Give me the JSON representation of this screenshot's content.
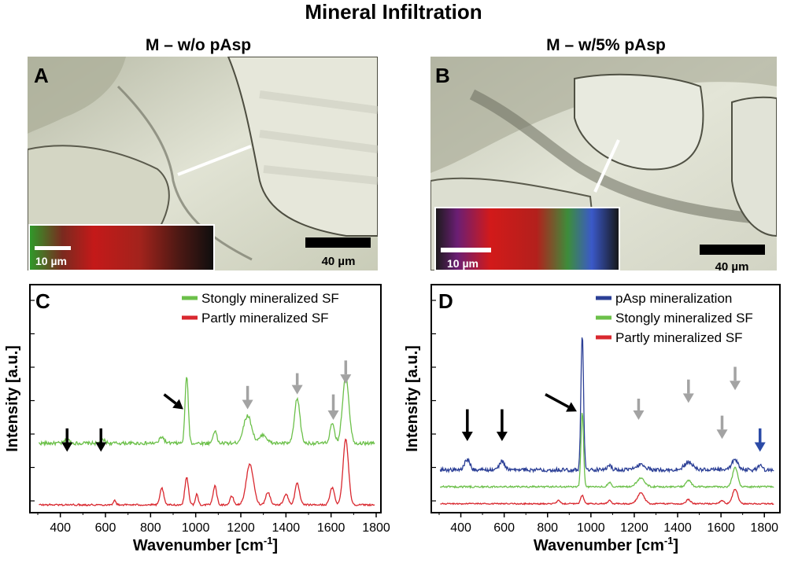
{
  "figure": {
    "title": "Mineral Infiltration",
    "left_condition": "M – w/o pAsp",
    "right_condition": "M – w/5% pAsp"
  },
  "panels": {
    "A": {
      "letter": "A",
      "scale_bar": "40 µm",
      "inset_scale_bar": "10 µm"
    },
    "B": {
      "letter": "B",
      "scale_bar": "40 µm",
      "inset_scale_bar": "10 µm"
    }
  },
  "colors": {
    "green": "#6cc04a",
    "red": "#d9282f",
    "blue": "#2b3f96",
    "arrow_black": "#000000",
    "arrow_gray": "#a3a3a3",
    "arrow_blue": "#2b4aa6"
  },
  "chart_data": [
    {
      "id": "C",
      "panel_letter": "C",
      "type": "line",
      "xlabel": "Wavenumber [cm",
      "xlabel_sup": "-1",
      "xlabel_close": "]",
      "ylabel": "Intensity [a.u.]",
      "xlim": [
        300,
        1800
      ],
      "ylim": [
        0,
        1.0
      ],
      "xticks": [
        400,
        600,
        800,
        1000,
        1200,
        1400,
        1600,
        1800
      ],
      "series": [
        {
          "name": "Stongly mineralized SF",
          "color": "#6cc04a",
          "baseline": 0.29,
          "noise": 0.008,
          "peaks": [
            [
              430,
              0.02,
              10
            ],
            [
              590,
              0.015,
              10
            ],
            [
              850,
              0.03,
              10
            ],
            [
              960,
              0.32,
              7
            ],
            [
              1085,
              0.06,
              8
            ],
            [
              1230,
              0.13,
              18
            ],
            [
              1300,
              0.04,
              15
            ],
            [
              1450,
              0.21,
              12
            ],
            [
              1605,
              0.09,
              10
            ],
            [
              1665,
              0.32,
              14
            ]
          ]
        },
        {
          "name": "Partly mineralized SF",
          "color": "#d9282f",
          "baseline": 0.0,
          "noise": 0.004,
          "peaks": [
            [
              640,
              0.02,
              6
            ],
            [
              850,
              0.08,
              8
            ],
            [
              960,
              0.13,
              8
            ],
            [
              1005,
              0.05,
              6
            ],
            [
              1085,
              0.09,
              8
            ],
            [
              1160,
              0.04,
              8
            ],
            [
              1240,
              0.19,
              16
            ],
            [
              1320,
              0.06,
              10
            ],
            [
              1400,
              0.05,
              10
            ],
            [
              1450,
              0.1,
              10
            ],
            [
              1605,
              0.08,
              10
            ],
            [
              1665,
              0.31,
              12
            ]
          ]
        }
      ],
      "annotations": [
        {
          "kind": "black",
          "x": 430,
          "y_tail": 0.36,
          "y_head": 0.25
        },
        {
          "kind": "black",
          "x": 580,
          "y_tail": 0.36,
          "y_head": 0.25
        },
        {
          "kind": "black-diagonal",
          "x_tail": 860,
          "y_tail": 0.52,
          "x_head": 945,
          "y_head": 0.45
        },
        {
          "kind": "gray",
          "x": 1230,
          "y_tail": 0.56,
          "y_head": 0.45
        },
        {
          "kind": "gray",
          "x": 1450,
          "y_tail": 0.62,
          "y_head": 0.52
        },
        {
          "kind": "gray",
          "x": 1610,
          "y_tail": 0.52,
          "y_head": 0.4
        },
        {
          "kind": "gray",
          "x": 1665,
          "y_tail": 0.68,
          "y_head": 0.57
        }
      ]
    },
    {
      "id": "D",
      "panel_letter": "D",
      "type": "line",
      "xlabel": "Wavenumber [cm",
      "xlabel_sup": "-1",
      "xlabel_close": "]",
      "ylabel": "Intensity [a.u.]",
      "xlim": [
        300,
        1850
      ],
      "ylim": [
        0,
        1.0
      ],
      "xticks": [
        400,
        600,
        800,
        1000,
        1200,
        1400,
        1600,
        1800
      ],
      "series": [
        {
          "name": "pAsp mineralization",
          "color": "#2b3f96",
          "baseline": 0.165,
          "noise": 0.009,
          "peaks": [
            [
              430,
              0.05,
              12
            ],
            [
              590,
              0.04,
              12
            ],
            [
              960,
              0.64,
              6
            ],
            [
              1085,
              0.02,
              10
            ],
            [
              1230,
              0.025,
              20
            ],
            [
              1450,
              0.035,
              20
            ],
            [
              1665,
              0.05,
              14
            ],
            [
              1780,
              0.02,
              10
            ]
          ]
        },
        {
          "name": "Stongly mineralized SF",
          "color": "#6cc04a",
          "baseline": 0.085,
          "noise": 0.004,
          "peaks": [
            [
              960,
              0.35,
              6
            ],
            [
              1085,
              0.02,
              8
            ],
            [
              1230,
              0.04,
              18
            ],
            [
              1450,
              0.03,
              12
            ],
            [
              1665,
              0.09,
              12
            ]
          ]
        },
        {
          "name": "Partly mineralized SF",
          "color": "#d9282f",
          "baseline": 0.005,
          "noise": 0.003,
          "peaks": [
            [
              850,
              0.015,
              8
            ],
            [
              960,
              0.04,
              7
            ],
            [
              1085,
              0.015,
              8
            ],
            [
              1230,
              0.05,
              16
            ],
            [
              1450,
              0.02,
              10
            ],
            [
              1605,
              0.015,
              10
            ],
            [
              1665,
              0.07,
              12
            ]
          ]
        }
      ],
      "annotations": [
        {
          "kind": "black",
          "x": 430,
          "y_tail": 0.45,
          "y_head": 0.3
        },
        {
          "kind": "black",
          "x": 590,
          "y_tail": 0.45,
          "y_head": 0.3
        },
        {
          "kind": "black-diagonal",
          "x_tail": 790,
          "y_tail": 0.52,
          "x_head": 935,
          "y_head": 0.44
        },
        {
          "kind": "gray",
          "x": 1220,
          "y_tail": 0.5,
          "y_head": 0.4
        },
        {
          "kind": "gray",
          "x": 1450,
          "y_tail": 0.59,
          "y_head": 0.48
        },
        {
          "kind": "gray",
          "x": 1605,
          "y_tail": 0.42,
          "y_head": 0.31
        },
        {
          "kind": "gray",
          "x": 1665,
          "y_tail": 0.65,
          "y_head": 0.54
        },
        {
          "kind": "blue",
          "x": 1780,
          "y_tail": 0.36,
          "y_head": 0.25
        }
      ]
    }
  ]
}
